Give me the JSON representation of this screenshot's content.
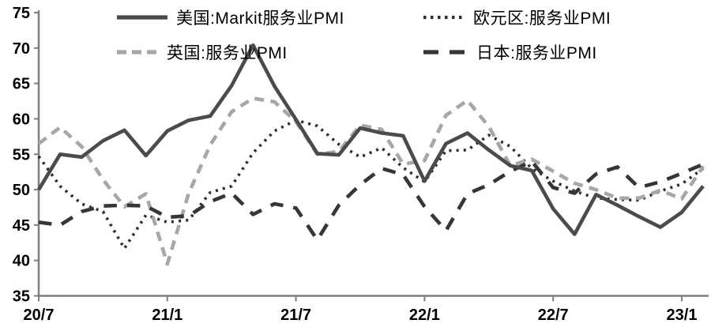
{
  "colors": {
    "background": "#ffffff",
    "axis": "#7f7f7f",
    "text": "#000000",
    "us_line": "#4b4b4b",
    "eurozone_line": "#2e2e2e",
    "uk_line": "#a7a7a7",
    "japan_line": "#363636"
  },
  "chart_data": {
    "type": "line",
    "title": "",
    "xlabel": "",
    "ylabel": "",
    "ylim": [
      35,
      75
    ],
    "y_ticks": [
      35,
      40,
      45,
      50,
      55,
      60,
      65,
      70,
      75
    ],
    "x_tick_labels": [
      "20/7",
      "21/1",
      "21/7",
      "22/1",
      "22/7",
      "23/1"
    ],
    "x_tick_indices": [
      0,
      6,
      12,
      18,
      24,
      30
    ],
    "grid": false,
    "legend_position": "top",
    "x": [
      "20/7",
      "20/8",
      "20/9",
      "20/10",
      "20/11",
      "20/12",
      "21/1",
      "21/2",
      "21/3",
      "21/4",
      "21/5",
      "21/6",
      "21/7",
      "21/8",
      "21/9",
      "21/10",
      "21/11",
      "21/12",
      "22/1",
      "22/2",
      "22/3",
      "22/4",
      "22/5",
      "22/6",
      "22/7",
      "22/8",
      "22/9",
      "22/10",
      "22/11",
      "22/12",
      "23/1",
      "23/2"
    ],
    "series": [
      {
        "id": "us",
        "name": "美国:Markit服务业PMI",
        "style": "solid",
        "color": "#4b4b4b",
        "values": [
          50.0,
          55.0,
          54.6,
          56.9,
          58.4,
          54.8,
          58.3,
          59.8,
          60.4,
          64.7,
          70.4,
          64.6,
          59.9,
          55.1,
          54.9,
          58.7,
          58.0,
          57.6,
          51.2,
          56.5,
          58.0,
          55.6,
          53.4,
          52.7,
          47.3,
          43.7,
          49.3,
          47.8,
          46.2,
          44.7,
          46.8,
          50.5
        ]
      },
      {
        "id": "ez",
        "name": "欧元区:服务业PMI",
        "style": "dotted",
        "color": "#2e2e2e",
        "values": [
          54.7,
          50.5,
          48.0,
          46.9,
          41.7,
          46.4,
          45.4,
          45.7,
          49.6,
          50.5,
          55.2,
          58.3,
          59.8,
          59.0,
          56.4,
          54.6,
          55.9,
          53.1,
          51.1,
          55.5,
          55.6,
          57.7,
          56.1,
          53.0,
          51.2,
          49.8,
          48.8,
          48.6,
          48.5,
          49.8,
          50.8,
          53.0
        ]
      },
      {
        "id": "uk",
        "name": "英国:服务业PMI",
        "style": "dashed",
        "color": "#a7a7a7",
        "values": [
          56.5,
          58.8,
          56.1,
          51.4,
          47.6,
          49.4,
          39.5,
          49.5,
          56.3,
          61.0,
          62.9,
          62.4,
          59.6,
          55.0,
          55.4,
          59.1,
          58.5,
          53.6,
          54.1,
          60.5,
          62.6,
          58.9,
          53.4,
          54.3,
          52.6,
          50.9,
          50.0,
          48.8,
          48.8,
          49.9,
          48.7,
          53.3
        ]
      },
      {
        "id": "jp",
        "name": "日本:服务业PMI",
        "style": "longdash",
        "color": "#363636",
        "values": [
          45.4,
          45.0,
          46.9,
          47.7,
          47.8,
          47.7,
          46.1,
          46.3,
          48.3,
          49.5,
          46.5,
          48.0,
          47.4,
          42.9,
          47.8,
          50.7,
          53.0,
          52.1,
          47.6,
          44.2,
          49.4,
          50.7,
          52.6,
          54.0,
          50.3,
          49.5,
          52.2,
          53.2,
          50.3,
          51.1,
          52.3,
          53.6
        ]
      }
    ]
  }
}
